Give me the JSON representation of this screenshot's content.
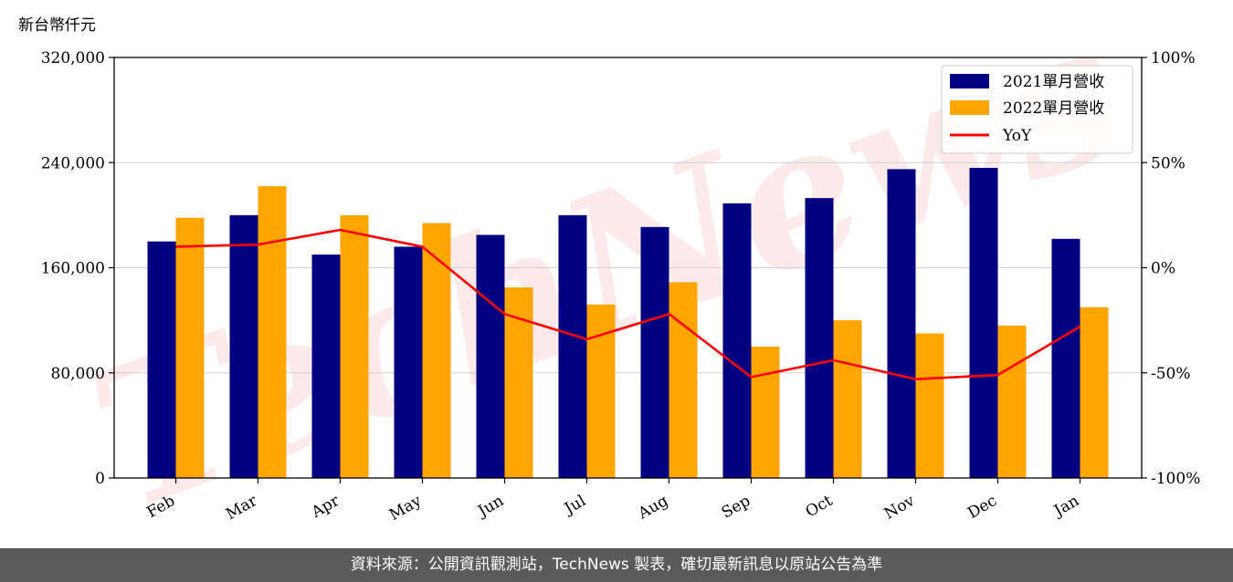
{
  "chart_data": {
    "type": "bar",
    "unit_label": "新台幣仟元",
    "categories": [
      "Feb",
      "Mar",
      "Apr",
      "May",
      "Jun",
      "Jul",
      "Aug",
      "Sep",
      "Oct",
      "Nov",
      "Dec",
      "Jan"
    ],
    "series": [
      {
        "name": "2021單月營收",
        "type": "bar",
        "axis": "left",
        "color": "#000080",
        "values": [
          180000,
          200000,
          170000,
          176000,
          185000,
          200000,
          191000,
          209000,
          213000,
          235000,
          236000,
          182000
        ]
      },
      {
        "name": "2022單月營收",
        "type": "bar",
        "axis": "left",
        "color": "#ffa500",
        "values": [
          198000,
          222000,
          200000,
          194000,
          145000,
          132000,
          149000,
          100000,
          120000,
          110000,
          116000,
          130000
        ]
      },
      {
        "name": "YoY",
        "type": "line",
        "axis": "right",
        "color": "#ff0000",
        "values": [
          10,
          11,
          18,
          10,
          -22,
          -34,
          -22,
          -52,
          -44,
          -53,
          -51,
          -28
        ]
      }
    ],
    "y_left": {
      "lim": [
        0,
        320000
      ],
      "ticks": [
        "0",
        "80,000",
        "160,000",
        "240,000",
        "320,000"
      ],
      "tick_values": [
        0,
        80000,
        160000,
        240000,
        320000
      ]
    },
    "y_right": {
      "lim": [
        -100,
        100
      ],
      "ticks": [
        "-100%",
        "-50%",
        "0%",
        "50%",
        "100%"
      ],
      "tick_values": [
        -100,
        -50,
        0,
        50,
        100
      ]
    },
    "grid": "horizontal",
    "legend": "top-right"
  },
  "watermark": "TechNews",
  "footer": "資料來源：公開資訊觀測站，TechNews 製表，確切最新訊息以原站公告為準"
}
